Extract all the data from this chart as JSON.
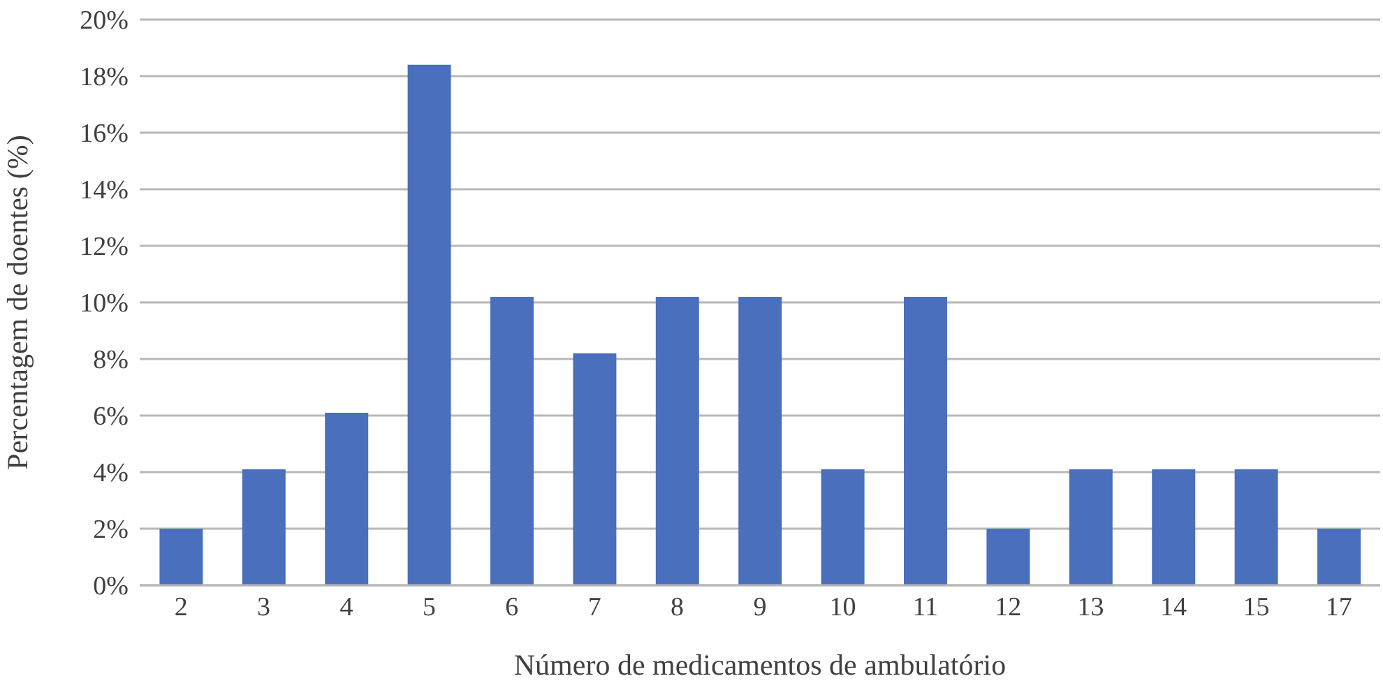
{
  "chart_data": {
    "type": "bar",
    "xlabel": "Número de medicamentos de ambulatório",
    "ylabel": "Percentagem de doentes (%)",
    "categories": [
      "2",
      "3",
      "4",
      "5",
      "6",
      "7",
      "8",
      "9",
      "10",
      "11",
      "12",
      "13",
      "14",
      "15",
      "17"
    ],
    "values": [
      2.0,
      4.1,
      6.1,
      18.4,
      10.2,
      8.2,
      10.2,
      10.2,
      4.1,
      10.2,
      2.0,
      4.1,
      4.1,
      4.1,
      2.0
    ],
    "color": "#4a6fbd",
    "ylim": [
      0,
      20
    ],
    "yticks": [
      {
        "value": 0,
        "label": "0%"
      },
      {
        "value": 2,
        "label": "2%"
      },
      {
        "value": 4,
        "label": "4%"
      },
      {
        "value": 6,
        "label": "6%"
      },
      {
        "value": 8,
        "label": "8%"
      },
      {
        "value": 10,
        "label": "10%"
      },
      {
        "value": 12,
        "label": "12%"
      },
      {
        "value": 14,
        "label": "14%"
      },
      {
        "value": 16,
        "label": "16%"
      },
      {
        "value": 18,
        "label": "18%"
      },
      {
        "value": 20,
        "label": "20%"
      }
    ],
    "grid": "y"
  }
}
